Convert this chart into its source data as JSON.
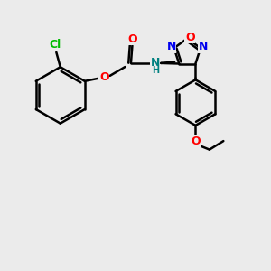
{
  "bg_color": "#ebebeb",
  "bond_color": "#000000",
  "bond_width": 1.8,
  "atom_colors": {
    "Cl": "#00bb00",
    "O": "#ff0000",
    "N": "#0000ee",
    "N_amide": "#008080",
    "C": "#000000"
  }
}
